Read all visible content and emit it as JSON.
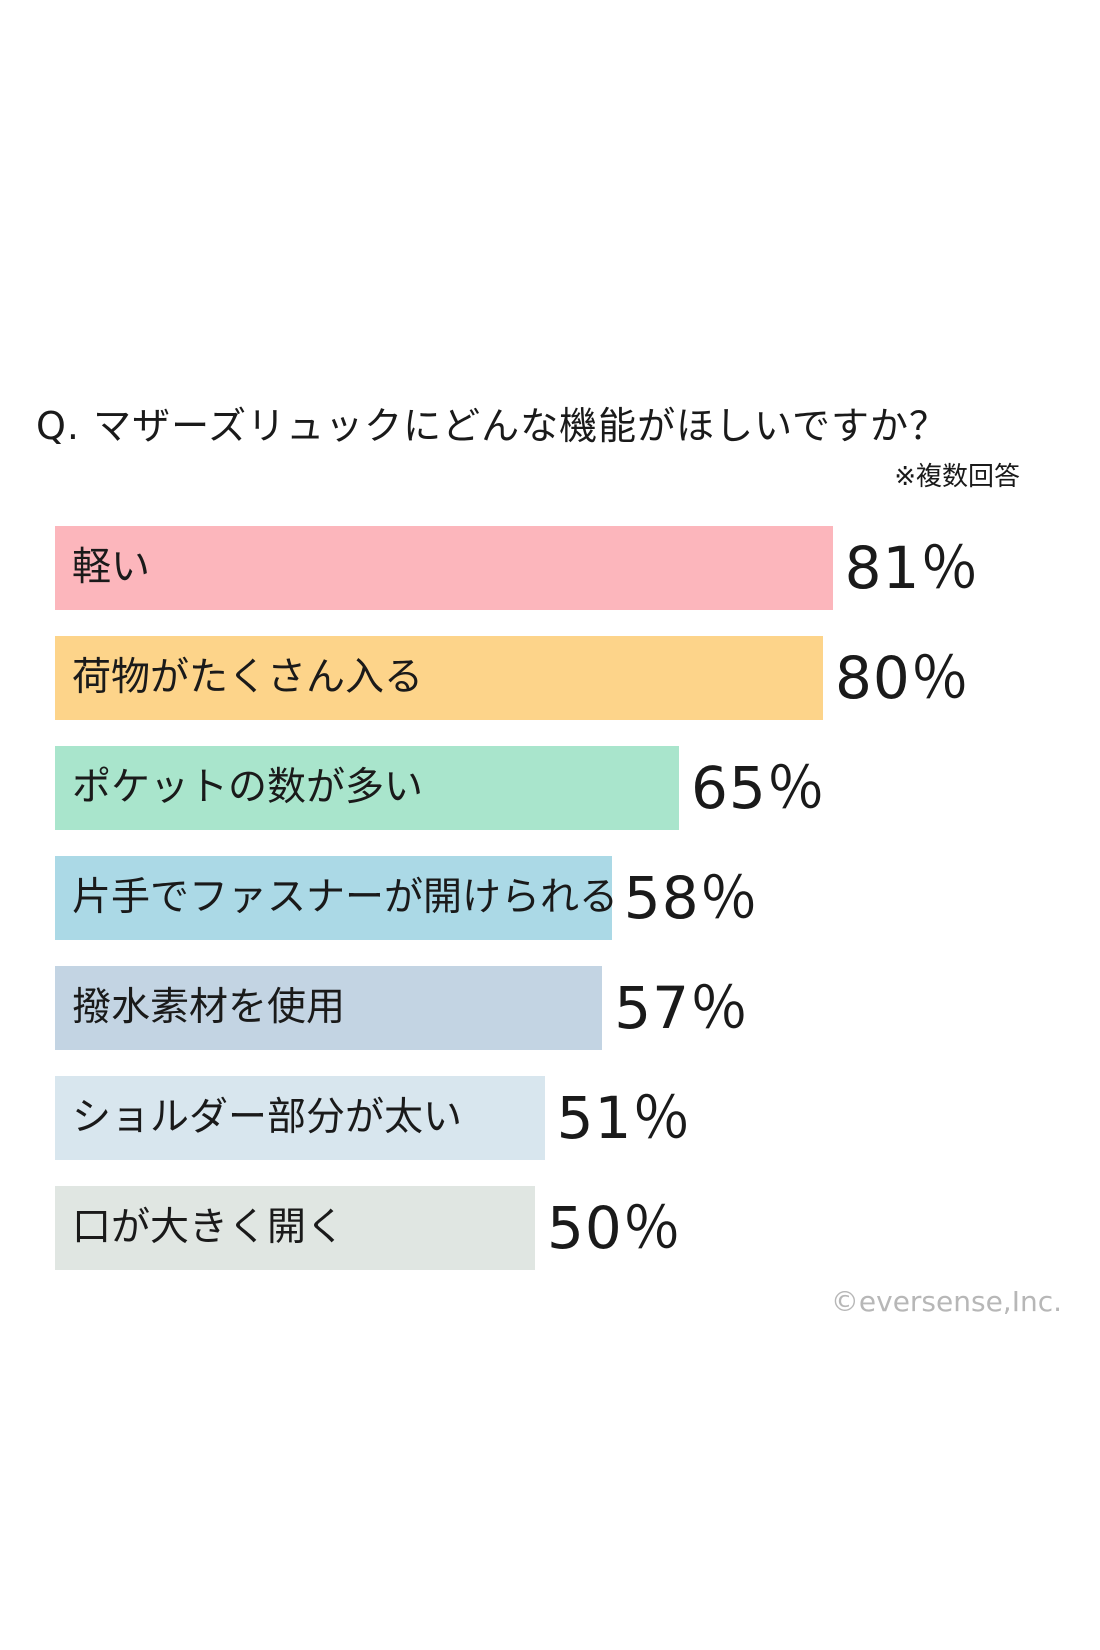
{
  "question": "Q. マザーズリュックにどんな機能がほしいですか？",
  "note": "※複数回答",
  "credit": "©eversense,Inc.",
  "chart_data": {
    "type": "bar",
    "orientation": "horizontal",
    "title": "Q. マザーズリュックにどんな機能がほしいですか？",
    "categories": [
      "軽い",
      "荷物がたくさん入る",
      "ポケットの数が多い",
      "片手でファスナーが開けられる",
      "撥水素材を使用",
      "ショルダー部分が太い",
      "口が大きく開く"
    ],
    "values": [
      81,
      80,
      65,
      58,
      57,
      51,
      50
    ],
    "value_labels": [
      "81％",
      "80％",
      "65％",
      "58％",
      "57％",
      "51％",
      "50％"
    ],
    "colors": [
      "#fcb6bc",
      "#fdd48a",
      "#a9e5cc",
      "#abd9e6",
      "#c3d4e3",
      "#d8e6ee",
      "#e0e6e2"
    ],
    "xlim": [
      0,
      100
    ],
    "grid": false,
    "legend": "none"
  }
}
